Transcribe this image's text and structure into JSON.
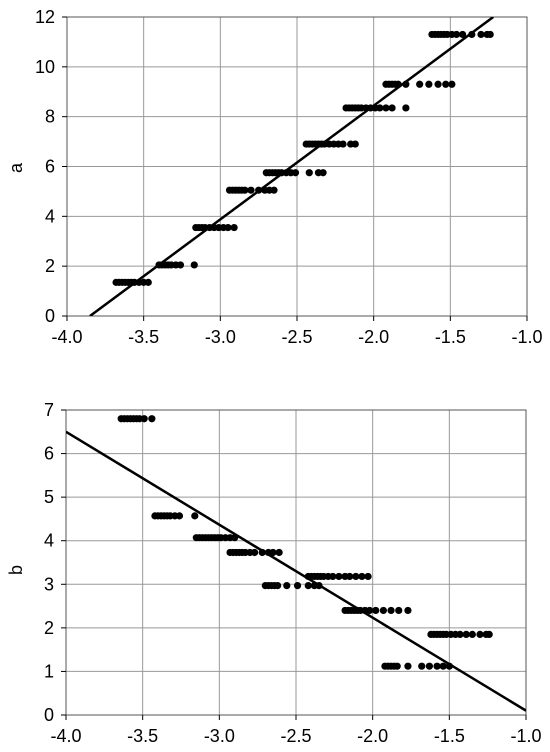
{
  "chart_data": [
    {
      "type": "scatter",
      "title": "",
      "xlabel": "",
      "ylabel": "a",
      "xlim": [
        -4.0,
        -1.0
      ],
      "ylim": [
        0,
        12
      ],
      "grid": true,
      "x_ticks": [
        "-4.0",
        "-3.5",
        "-3.0",
        "-2.5",
        "-2.0",
        "-1.5",
        "-1.0"
      ],
      "y_ticks": [
        "0",
        "2",
        "4",
        "6",
        "8",
        "10",
        "12"
      ],
      "fit_line": {
        "x": [
          -3.85,
          -1.22
        ],
        "y": [
          0.0,
          12.0
        ]
      },
      "points": [
        {
          "y": 1.35,
          "x": [
            -3.68,
            -3.66,
            -3.64,
            -3.62,
            -3.6,
            -3.58,
            -3.56,
            -3.53,
            -3.5,
            -3.47
          ]
        },
        {
          "y": 2.05,
          "x": [
            -3.4,
            -3.38,
            -3.36,
            -3.34,
            -3.32,
            -3.29,
            -3.26,
            -3.17
          ]
        },
        {
          "y": 3.55,
          "x": [
            -3.16,
            -3.14,
            -3.12,
            -3.1,
            -3.07,
            -3.04,
            -3.01,
            -2.98,
            -2.95,
            -2.91
          ]
        },
        {
          "y": 5.05,
          "x": [
            -2.94,
            -2.92,
            -2.9,
            -2.88,
            -2.86,
            -2.84,
            -2.8,
            -2.75,
            -2.71,
            -2.68,
            -2.65
          ]
        },
        {
          "y": 5.75,
          "x": [
            -2.7,
            -2.68,
            -2.66,
            -2.64,
            -2.62,
            -2.6,
            -2.57,
            -2.54,
            -2.51
          ]
        },
        {
          "y": 6.9,
          "x": [
            -2.44,
            -2.42,
            -2.4,
            -2.38,
            -2.36,
            -2.34,
            -2.32,
            -2.29,
            -2.26,
            -2.23,
            -2.2,
            -2.15,
            -2.12
          ]
        },
        {
          "y": 5.75,
          "x": [
            -2.42,
            -2.36,
            -2.33
          ]
        },
        {
          "y": 8.35,
          "x": [
            -2.18,
            -2.16,
            -2.14,
            -2.12,
            -2.1,
            -2.08,
            -2.05,
            -2.02,
            -1.99,
            -1.96,
            -1.92,
            -1.88,
            -1.79
          ]
        },
        {
          "y": 9.3,
          "x": [
            -1.92,
            -1.9,
            -1.88,
            -1.86,
            -1.84,
            -1.79,
            -1.7,
            -1.64,
            -1.58,
            -1.53,
            -1.49
          ]
        },
        {
          "y": 11.3,
          "x": [
            -1.62,
            -1.6,
            -1.58,
            -1.56,
            -1.54,
            -1.52,
            -1.49,
            -1.46,
            -1.42,
            -1.36,
            -1.3,
            -1.26,
            -1.24
          ]
        }
      ]
    },
    {
      "type": "scatter",
      "title": "",
      "xlabel": "",
      "ylabel": "b",
      "xlim": [
        -4.0,
        -1.0
      ],
      "ylim": [
        0,
        7
      ],
      "grid": true,
      "x_ticks": [
        "-4.0",
        "-3.5",
        "-3.0",
        "-2.5",
        "-2.0",
        "-1.5",
        "-1.0"
      ],
      "y_ticks": [
        "0",
        "1",
        "2",
        "3",
        "4",
        "5",
        "6",
        "7"
      ],
      "fit_line": {
        "x": [
          -4.0,
          -1.0
        ],
        "y": [
          6.5,
          0.1
        ]
      },
      "points": [
        {
          "y": 6.8,
          "x": [
            -3.64,
            -3.62,
            -3.6,
            -3.58,
            -3.56,
            -3.54,
            -3.52,
            -3.49,
            -3.44
          ]
        },
        {
          "y": 4.57,
          "x": [
            -3.42,
            -3.4,
            -3.38,
            -3.36,
            -3.34,
            -3.32,
            -3.29,
            -3.26,
            -3.16
          ]
        },
        {
          "y": 4.07,
          "x": [
            -3.15,
            -3.13,
            -3.11,
            -3.09,
            -3.07,
            -3.05,
            -3.03,
            -3.01,
            -2.99,
            -2.96,
            -2.93,
            -2.9
          ]
        },
        {
          "y": 3.73,
          "x": [
            -2.93,
            -2.91,
            -2.89,
            -2.87,
            -2.85,
            -2.83,
            -2.8,
            -2.77,
            -2.72,
            -2.68,
            -2.65,
            -2.61
          ]
        },
        {
          "y": 2.97,
          "x": [
            -2.7,
            -2.68,
            -2.66,
            -2.64,
            -2.62,
            -2.56,
            -2.49,
            -2.42,
            -2.38,
            -2.35
          ]
        },
        {
          "y": 3.18,
          "x": [
            -2.42,
            -2.4,
            -2.38,
            -2.36,
            -2.34,
            -2.32,
            -2.29,
            -2.26,
            -2.22,
            -2.18,
            -2.15,
            -2.11,
            -2.07,
            -2.03
          ]
        },
        {
          "y": 2.4,
          "x": [
            -2.18,
            -2.16,
            -2.14,
            -2.12,
            -2.1,
            -2.08,
            -2.05,
            -2.02,
            -1.98,
            -1.93,
            -1.88,
            -1.83,
            -1.77
          ]
        },
        {
          "y": 1.12,
          "x": [
            -1.92,
            -1.9,
            -1.88,
            -1.86,
            -1.84,
            -1.77,
            -1.68,
            -1.63,
            -1.58,
            -1.54,
            -1.5
          ]
        },
        {
          "y": 1.85,
          "x": [
            -1.62,
            -1.6,
            -1.58,
            -1.56,
            -1.54,
            -1.52,
            -1.49,
            -1.46,
            -1.43,
            -1.39,
            -1.35,
            -1.3,
            -1.26,
            -1.24
          ]
        }
      ]
    }
  ]
}
